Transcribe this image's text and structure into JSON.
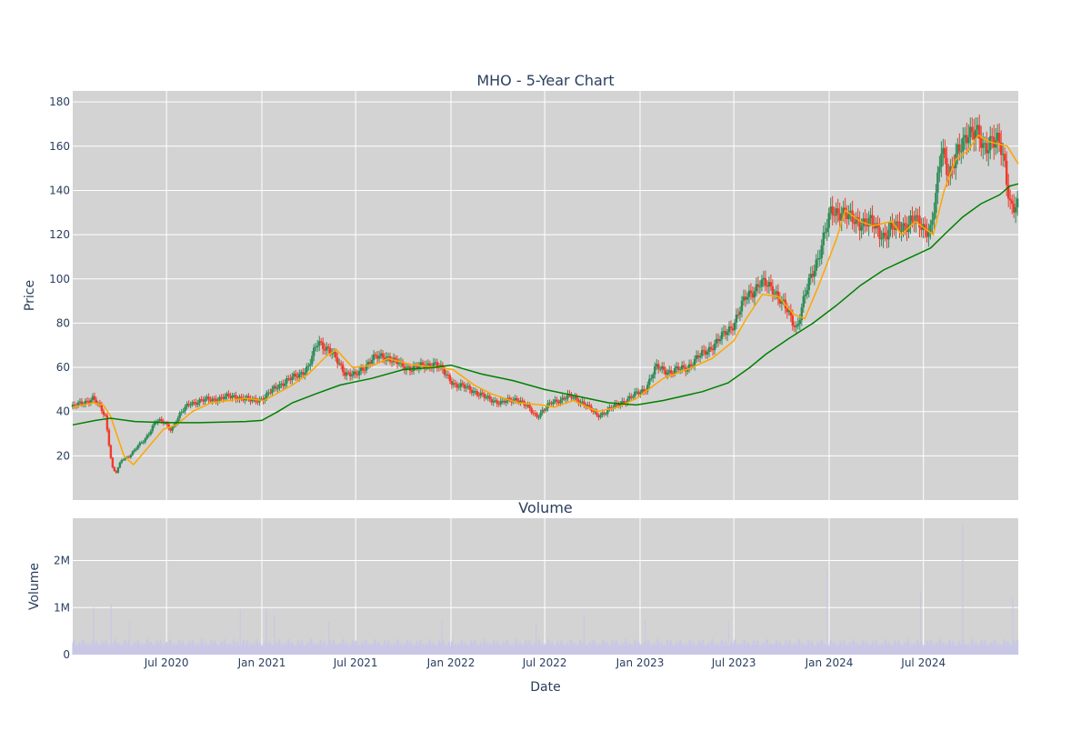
{
  "colors": {
    "plot_bg": "#d3d3d3",
    "grid": "#ffffff",
    "increasing": "#2e8b57",
    "decreasing": "#ef3b2c",
    "ma_short": "#ffa500",
    "ma_long": "#008000",
    "volume": "#c8c8e6",
    "text": "#2a3f5f"
  },
  "chart_data": [
    {
      "type": "candlestick",
      "title": "MHO - 5-Year Chart",
      "ylabel": "Price",
      "ylim": [
        0,
        185
      ],
      "yticks": [
        20,
        40,
        60,
        80,
        100,
        120,
        140,
        160,
        180
      ],
      "xlim": [
        "2020-01-02",
        "2024-12-31"
      ],
      "grid": true,
      "series": [
        {
          "name": "",
          "kind": "close_path",
          "points": [
            [
              "2020-01-02",
              42
            ],
            [
              "2020-01-20",
              44
            ],
            [
              "2020-02-10",
              46
            ],
            [
              "2020-02-20",
              43
            ],
            [
              "2020-03-05",
              38
            ],
            [
              "2020-03-18",
              15
            ],
            [
              "2020-03-25",
              12
            ],
            [
              "2020-04-05",
              18
            ],
            [
              "2020-04-20",
              20
            ],
            [
              "2020-05-05",
              24
            ],
            [
              "2020-05-20",
              27
            ],
            [
              "2020-06-10",
              36
            ],
            [
              "2020-06-25",
              35
            ],
            [
              "2020-07-10",
              32
            ],
            [
              "2020-07-25",
              38
            ],
            [
              "2020-08-15",
              44
            ],
            [
              "2020-09-10",
              45
            ],
            [
              "2020-10-10",
              46
            ],
            [
              "2020-11-10",
              47
            ],
            [
              "2020-12-10",
              45
            ],
            [
              "2021-01-05",
              46
            ],
            [
              "2021-02-01",
              52
            ],
            [
              "2021-03-01",
              55
            ],
            [
              "2021-04-01",
              60
            ],
            [
              "2021-04-20",
              72
            ],
            [
              "2021-05-10",
              68
            ],
            [
              "2021-06-10",
              58
            ],
            [
              "2021-07-01",
              56
            ],
            [
              "2021-08-01",
              64
            ],
            [
              "2021-09-01",
              65
            ],
            [
              "2021-10-01",
              60
            ],
            [
              "2021-11-01",
              60
            ],
            [
              "2021-12-01",
              62
            ],
            [
              "2022-01-10",
              52
            ],
            [
              "2022-02-10",
              50
            ],
            [
              "2022-03-10",
              46
            ],
            [
              "2022-04-10",
              44
            ],
            [
              "2022-05-10",
              46
            ],
            [
              "2022-06-15",
              38
            ],
            [
              "2022-07-15",
              44
            ],
            [
              "2022-08-15",
              47
            ],
            [
              "2022-09-15",
              44
            ],
            [
              "2022-10-10",
              38
            ],
            [
              "2022-11-10",
              42
            ],
            [
              "2022-12-10",
              46
            ],
            [
              "2023-01-10",
              50
            ],
            [
              "2023-02-01",
              60
            ],
            [
              "2023-03-01",
              58
            ],
            [
              "2023-04-01",
              60
            ],
            [
              "2023-05-01",
              66
            ],
            [
              "2023-06-01",
              72
            ],
            [
              "2023-07-01",
              80
            ],
            [
              "2023-07-25",
              92
            ],
            [
              "2023-08-20",
              98
            ],
            [
              "2023-09-15",
              96
            ],
            [
              "2023-10-15",
              84
            ],
            [
              "2023-10-30",
              78
            ],
            [
              "2023-11-15",
              92
            ],
            [
              "2023-12-10",
              110
            ],
            [
              "2024-01-05",
              130
            ],
            [
              "2024-01-25",
              131
            ],
            [
              "2024-02-15",
              126
            ],
            [
              "2024-03-15",
              126
            ],
            [
              "2024-04-15",
              120
            ],
            [
              "2024-05-15",
              124
            ],
            [
              "2024-06-15",
              126
            ],
            [
              "2024-07-15",
              122
            ],
            [
              "2024-07-25",
              136
            ],
            [
              "2024-08-05",
              160
            ],
            [
              "2024-08-20",
              148
            ],
            [
              "2024-09-10",
              158
            ],
            [
              "2024-09-25",
              168
            ],
            [
              "2024-10-10",
              166
            ],
            [
              "2024-10-25",
              158
            ],
            [
              "2024-11-10",
              165
            ],
            [
              "2024-11-25",
              160
            ],
            [
              "2024-12-05",
              150
            ],
            [
              "2024-12-15",
              135
            ],
            [
              "2024-12-31",
              133
            ]
          ]
        },
        {
          "name": "",
          "kind": "line",
          "color_key": "ma_short",
          "points": [
            [
              "2020-01-02",
              42
            ],
            [
              "2020-02-10",
              44
            ],
            [
              "2020-03-01",
              43
            ],
            [
              "2020-03-15",
              38
            ],
            [
              "2020-04-10",
              20
            ],
            [
              "2020-04-28",
              16
            ],
            [
              "2020-05-20",
              22
            ],
            [
              "2020-06-25",
              32
            ],
            [
              "2020-07-20",
              34
            ],
            [
              "2020-08-20",
              40
            ],
            [
              "2020-09-25",
              44
            ],
            [
              "2020-12-01",
              46
            ],
            [
              "2021-01-05",
              45
            ],
            [
              "2021-03-01",
              52
            ],
            [
              "2021-04-01",
              57
            ],
            [
              "2021-05-05",
              65
            ],
            [
              "2021-05-25",
              68
            ],
            [
              "2021-06-25",
              60
            ],
            [
              "2021-08-05",
              61
            ],
            [
              "2021-09-01",
              64
            ],
            [
              "2021-10-20",
              61
            ],
            [
              "2021-12-10",
              60
            ],
            [
              "2022-01-05",
              59
            ],
            [
              "2022-02-15",
              52
            ],
            [
              "2022-03-20",
              48
            ],
            [
              "2022-05-10",
              44
            ],
            [
              "2022-06-25",
              43
            ],
            [
              "2022-07-20",
              42
            ],
            [
              "2022-08-25",
              45
            ],
            [
              "2022-10-10",
              40
            ],
            [
              "2022-11-20",
              42
            ],
            [
              "2022-12-25",
              46
            ],
            [
              "2023-02-15",
              55
            ],
            [
              "2023-04-01",
              59
            ],
            [
              "2023-05-20",
              64
            ],
            [
              "2023-07-01",
              72
            ],
            [
              "2023-07-25",
              82
            ],
            [
              "2023-08-25",
              93
            ],
            [
              "2023-09-25",
              92
            ],
            [
              "2023-10-25",
              84
            ],
            [
              "2023-11-15",
              82
            ],
            [
              "2023-12-10",
              96
            ],
            [
              "2024-01-15",
              118
            ],
            [
              "2024-02-01",
              131
            ],
            [
              "2024-03-01",
              126
            ],
            [
              "2024-03-25",
              124
            ],
            [
              "2024-05-01",
              126
            ],
            [
              "2024-05-20",
              120
            ],
            [
              "2024-06-15",
              126
            ],
            [
              "2024-07-20",
              120
            ],
            [
              "2024-08-10",
              140
            ],
            [
              "2024-09-01",
              154
            ],
            [
              "2024-09-25",
              158
            ],
            [
              "2024-10-15",
              165
            ],
            [
              "2024-11-05",
              162
            ],
            [
              "2024-12-10",
              160
            ],
            [
              "2024-12-31",
              152
            ]
          ]
        },
        {
          "name": "",
          "kind": "line",
          "color_key": "ma_long",
          "points": [
            [
              "2020-01-02",
              34
            ],
            [
              "2020-02-15",
              36
            ],
            [
              "2020-03-15",
              37
            ],
            [
              "2020-05-01",
              35.5
            ],
            [
              "2020-07-01",
              35
            ],
            [
              "2020-09-01",
              35
            ],
            [
              "2020-12-01",
              35.5
            ],
            [
              "2021-01-01",
              36
            ],
            [
              "2021-02-01",
              40
            ],
            [
              "2021-03-01",
              44
            ],
            [
              "2021-04-15",
              48
            ],
            [
              "2021-06-01",
              52
            ],
            [
              "2021-08-01",
              55
            ],
            [
              "2021-10-01",
              59
            ],
            [
              "2021-12-01",
              60
            ],
            [
              "2022-01-01",
              61
            ],
            [
              "2022-03-01",
              57
            ],
            [
              "2022-05-01",
              54
            ],
            [
              "2022-07-01",
              50
            ],
            [
              "2022-09-01",
              47
            ],
            [
              "2022-11-01",
              44
            ],
            [
              "2022-12-25",
              43
            ],
            [
              "2023-02-15",
              45
            ],
            [
              "2023-05-01",
              49
            ],
            [
              "2023-06-20",
              53
            ],
            [
              "2023-08-01",
              60
            ],
            [
              "2023-09-01",
              66
            ],
            [
              "2023-10-15",
              73
            ],
            [
              "2023-12-01",
              80
            ],
            [
              "2024-01-15",
              88
            ],
            [
              "2024-03-01",
              97
            ],
            [
              "2024-04-15",
              104
            ],
            [
              "2024-05-30",
              109
            ],
            [
              "2024-07-15",
              114
            ],
            [
              "2024-08-10",
              120
            ],
            [
              "2024-09-15",
              128
            ],
            [
              "2024-10-20",
              134
            ],
            [
              "2024-11-25",
              138
            ],
            [
              "2024-12-15",
              142
            ],
            [
              "2024-12-31",
              143
            ]
          ]
        }
      ]
    },
    {
      "type": "bar",
      "title": "Volume",
      "xlabel": "Date",
      "ylabel": "Volume",
      "ylim": [
        0,
        2900000
      ],
      "yticks": [
        0,
        1000000,
        2000000
      ],
      "ytick_labels": [
        "0",
        "1M",
        "2M"
      ],
      "xticks": [
        "2020-07-01",
        "2021-01-01",
        "2021-07-01",
        "2022-01-01",
        "2022-07-01",
        "2023-01-01",
        "2023-07-01",
        "2024-01-01",
        "2024-07-01"
      ],
      "xtick_labels": [
        "Jul 2020",
        "Jan 2021",
        "Jul 2021",
        "Jan 2022",
        "Jul 2022",
        "Jan 2023",
        "Jul 2023",
        "Jan 2024",
        "Jul 2024"
      ],
      "baseline": 280000,
      "spikes": [
        [
          "2020-02-12",
          1000000
        ],
        [
          "2020-03-16",
          1080000
        ],
        [
          "2020-04-20",
          700000
        ],
        [
          "2020-11-20",
          950000
        ],
        [
          "2021-01-10",
          950000
        ],
        [
          "2021-01-25",
          850000
        ],
        [
          "2021-05-10",
          700000
        ],
        [
          "2021-12-15",
          750000
        ],
        [
          "2022-06-15",
          680000
        ],
        [
          "2022-09-15",
          820000
        ],
        [
          "2023-01-10",
          750000
        ],
        [
          "2023-06-20",
          700000
        ],
        [
          "2023-12-28",
          1800000
        ],
        [
          "2024-06-25",
          1350000
        ],
        [
          "2024-09-15",
          2800000
        ],
        [
          "2024-12-20",
          1200000
        ]
      ]
    }
  ]
}
